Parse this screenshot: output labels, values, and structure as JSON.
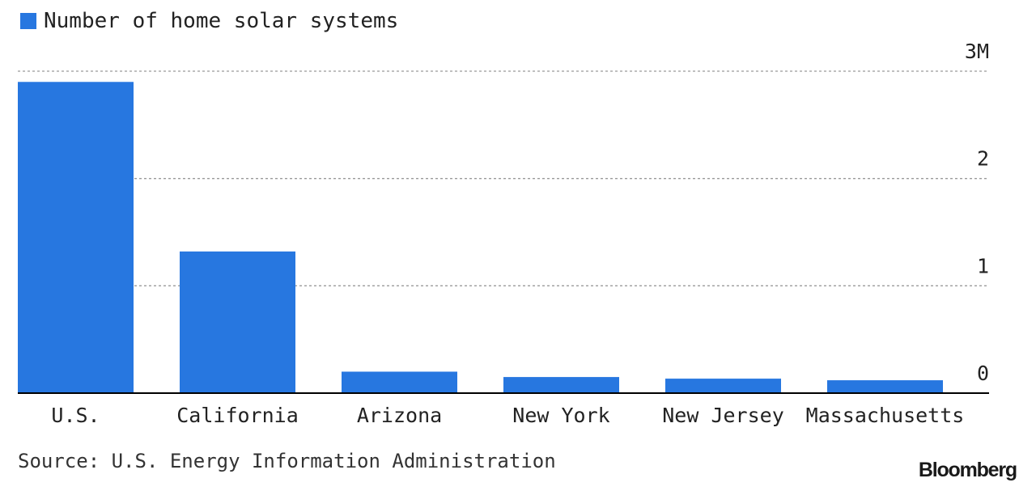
{
  "legend": {
    "label": "Number of home solar systems"
  },
  "colors": {
    "bar": "#2777e0",
    "grid": "#9a9a9a",
    "axis": "#000000",
    "text": "#222222"
  },
  "chart_data": {
    "type": "bar",
    "categories": [
      "U.S.",
      "California",
      "Arizona",
      "New York",
      "New Jersey",
      "Massachusetts"
    ],
    "series": [
      {
        "name": "Number of home solar systems",
        "values": [
          2.9,
          1.32,
          0.2,
          0.15,
          0.135,
          0.12
        ]
      }
    ],
    "ylim": [
      0,
      3
    ],
    "yticks": [
      0,
      1,
      2,
      3
    ],
    "ytick_labels": [
      "0",
      "1",
      "2",
      "3M"
    ],
    "y_axis_side": "right",
    "grid": true,
    "legend_position": "top-left"
  },
  "footer": {
    "source": "Source: U.S. Energy Information Administration",
    "brand": "Bloomberg"
  }
}
